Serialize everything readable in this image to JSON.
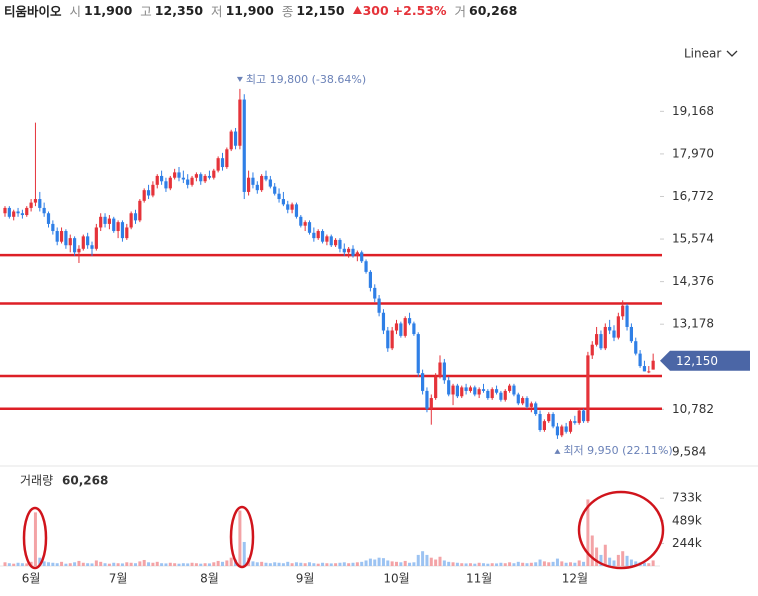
{
  "header": {
    "name": "티움바이오",
    "items": [
      {
        "label": "시",
        "value": "11,900"
      },
      {
        "label": "고",
        "value": "12,350"
      },
      {
        "label": "저",
        "value": "11,900"
      },
      {
        "label": "종",
        "value": "12,150"
      }
    ],
    "change": "300",
    "change_pct": "+2.53%",
    "volume_label": "거",
    "volume": "60,268"
  },
  "chart_data": {
    "type": "candlestick",
    "scale_mode": "Linear",
    "categories": [
      null,
      null,
      null,
      null,
      null,
      null,
      "6월",
      null,
      null,
      null,
      null,
      null,
      null,
      null,
      null,
      null,
      null,
      null,
      null,
      null,
      null,
      null,
      null,
      null,
      null,
      null,
      "7월",
      null,
      null,
      null,
      null,
      null,
      null,
      null,
      null,
      null,
      null,
      null,
      null,
      null,
      null,
      null,
      null,
      null,
      null,
      null,
      null,
      "8월",
      null,
      null,
      null,
      null,
      null,
      null,
      null,
      null,
      null,
      null,
      null,
      null,
      null,
      null,
      null,
      null,
      null,
      null,
      null,
      null,
      null,
      "9월",
      null,
      null,
      null,
      null,
      null,
      null,
      null,
      null,
      null,
      null,
      null,
      null,
      null,
      null,
      null,
      null,
      null,
      null,
      null,
      null,
      "10월",
      null,
      null,
      null,
      null,
      null,
      null,
      null,
      null,
      null,
      null,
      null,
      null,
      null,
      null,
      null,
      null,
      null,
      null,
      "11월",
      null,
      null,
      null,
      null,
      null,
      null,
      null,
      null,
      null,
      null,
      null,
      null,
      null,
      null,
      null,
      null,
      null,
      null,
      null,
      null,
      null,
      "12월",
      null,
      null,
      null,
      null,
      null,
      null,
      null,
      null,
      null,
      null,
      null,
      null,
      null,
      null,
      null,
      null,
      null,
      null
    ],
    "candles": [
      [
        16300,
        16500,
        16200,
        16450
      ],
      [
        16450,
        16500,
        16150,
        16200
      ],
      [
        16200,
        16400,
        16100,
        16350
      ],
      [
        16350,
        16450,
        16200,
        16300
      ],
      [
        16300,
        16400,
        16150,
        16250
      ],
      [
        16250,
        16500,
        16200,
        16450
      ],
      [
        16450,
        16700,
        16350,
        16600
      ],
      [
        16600,
        18850,
        16500,
        16700
      ],
      [
        16700,
        16900,
        16350,
        16450
      ],
      [
        16450,
        16600,
        16200,
        16300
      ],
      [
        16300,
        16350,
        15900,
        16000
      ],
      [
        16000,
        16100,
        15700,
        15800
      ],
      [
        15800,
        15900,
        15400,
        15500
      ],
      [
        15500,
        15900,
        15450,
        15800
      ],
      [
        15800,
        15850,
        15300,
        15400
      ],
      [
        15400,
        15700,
        15200,
        15600
      ],
      [
        15600,
        15650,
        15100,
        15200
      ],
      [
        15200,
        15400,
        14900,
        15300
      ],
      [
        15300,
        15700,
        15250,
        15650
      ],
      [
        15650,
        15750,
        15300,
        15400
      ],
      [
        15400,
        15500,
        15100,
        15300
      ],
      [
        15300,
        16000,
        15250,
        15900
      ],
      [
        15900,
        16300,
        15800,
        16200
      ],
      [
        16200,
        16300,
        15900,
        16000
      ],
      [
        16000,
        16250,
        15850,
        16150
      ],
      [
        16150,
        16200,
        15750,
        15800
      ],
      [
        15800,
        16100,
        15600,
        16050
      ],
      [
        16050,
        16100,
        15500,
        15600
      ],
      [
        15600,
        16000,
        15550,
        15900
      ],
      [
        15900,
        16350,
        15850,
        16300
      ],
      [
        16300,
        16400,
        16000,
        16100
      ],
      [
        16100,
        16700,
        16050,
        16650
      ],
      [
        16650,
        17000,
        16600,
        16950
      ],
      [
        16950,
        17100,
        16700,
        16800
      ],
      [
        16800,
        17200,
        16750,
        17100
      ],
      [
        17100,
        17400,
        17000,
        17350
      ],
      [
        17350,
        17500,
        17100,
        17200
      ],
      [
        17200,
        17300,
        16900,
        17000
      ],
      [
        17000,
        17350,
        16950,
        17300
      ],
      [
        17300,
        17550,
        17250,
        17450
      ],
      [
        17450,
        17600,
        17200,
        17300
      ],
      [
        17300,
        17500,
        17150,
        17250
      ],
      [
        17250,
        17400,
        17000,
        17100
      ],
      [
        17100,
        17350,
        17050,
        17300
      ],
      [
        17300,
        17450,
        17200,
        17400
      ],
      [
        17400,
        17450,
        17100,
        17200
      ],
      [
        17200,
        17400,
        17150,
        17350
      ],
      [
        17350,
        17500,
        17250,
        17300
      ],
      [
        17300,
        17550,
        17250,
        17500
      ],
      [
        17500,
        17900,
        17450,
        17850
      ],
      [
        17850,
        18000,
        17500,
        17600
      ],
      [
        17600,
        18150,
        17550,
        18100
      ],
      [
        18100,
        18650,
        18050,
        18600
      ],
      [
        18600,
        18700,
        18100,
        18200
      ],
      [
        18200,
        19800,
        18100,
        19500
      ],
      [
        19500,
        19650,
        16700,
        16900
      ],
      [
        16900,
        17500,
        16800,
        17300
      ],
      [
        17300,
        17450,
        17000,
        17100
      ],
      [
        17100,
        17200,
        16850,
        16950
      ],
      [
        16950,
        17400,
        16900,
        17350
      ],
      [
        17350,
        17500,
        17200,
        17250
      ],
      [
        17250,
        17350,
        17000,
        17050
      ],
      [
        17050,
        17150,
        16800,
        16850
      ],
      [
        16850,
        17000,
        16600,
        16700
      ],
      [
        16700,
        16900,
        16500,
        16550
      ],
      [
        16550,
        16650,
        16300,
        16400
      ],
      [
        16400,
        16600,
        16300,
        16550
      ],
      [
        16550,
        16600,
        16150,
        16200
      ],
      [
        16200,
        16250,
        15900,
        15950
      ],
      [
        15950,
        16100,
        15800,
        16050
      ],
      [
        16050,
        16100,
        15700,
        15750
      ],
      [
        15750,
        15900,
        15500,
        15600
      ],
      [
        15600,
        15850,
        15550,
        15800
      ],
      [
        15800,
        15850,
        15450,
        15500
      ],
      [
        15500,
        15700,
        15400,
        15650
      ],
      [
        15650,
        15700,
        15350,
        15400
      ],
      [
        15400,
        15600,
        15350,
        15550
      ],
      [
        15550,
        15600,
        15200,
        15300
      ],
      [
        15300,
        15450,
        15100,
        15200
      ],
      [
        15200,
        15350,
        15050,
        15300
      ],
      [
        15300,
        15400,
        15050,
        15100
      ],
      [
        15100,
        15250,
        14950,
        15200
      ],
      [
        15200,
        15250,
        14900,
        14950
      ],
      [
        14950,
        15000,
        14600,
        14650
      ],
      [
        14650,
        14700,
        14100,
        14200
      ],
      [
        14200,
        14300,
        13800,
        13900
      ],
      [
        13900,
        14000,
        13400,
        13500
      ],
      [
        13500,
        13600,
        12900,
        13000
      ],
      [
        13000,
        13100,
        12400,
        12500
      ],
      [
        12500,
        13100,
        12450,
        13000
      ],
      [
        13000,
        13300,
        12900,
        13200
      ],
      [
        13200,
        13250,
        12800,
        12850
      ],
      [
        12850,
        13400,
        12800,
        13350
      ],
      [
        13350,
        13500,
        13150,
        13200
      ],
      [
        13200,
        13250,
        12850,
        12900
      ],
      [
        12900,
        12950,
        11700,
        11800
      ],
      [
        11800,
        11900,
        11200,
        11300
      ],
      [
        11300,
        11400,
        10700,
        10800
      ],
      [
        10800,
        11200,
        10350,
        11100
      ],
      [
        11100,
        11800,
        11050,
        11700
      ],
      [
        11700,
        12300,
        11650,
        12100
      ],
      [
        12100,
        12200,
        11500,
        11600
      ],
      [
        11600,
        11700,
        11150,
        11200
      ],
      [
        11200,
        11500,
        10900,
        11450
      ],
      [
        11450,
        11500,
        11100,
        11150
      ],
      [
        11150,
        11450,
        11100,
        11400
      ],
      [
        11400,
        11500,
        11200,
        11300
      ],
      [
        11300,
        11450,
        11250,
        11400
      ],
      [
        11400,
        11450,
        11150,
        11200
      ],
      [
        11200,
        11400,
        11100,
        11350
      ],
      [
        11350,
        11500,
        11250,
        11300
      ],
      [
        11300,
        11350,
        11050,
        11100
      ],
      [
        11100,
        11400,
        11050,
        11350
      ],
      [
        11350,
        11450,
        11200,
        11250
      ],
      [
        11250,
        11300,
        11000,
        11050
      ],
      [
        11050,
        11350,
        11000,
        11300
      ],
      [
        11300,
        11500,
        11250,
        11450
      ],
      [
        11450,
        11500,
        11150,
        11200
      ],
      [
        11200,
        11250,
        10900,
        10950
      ],
      [
        10950,
        11150,
        10900,
        11100
      ],
      [
        11100,
        11150,
        10800,
        10850
      ],
      [
        10850,
        11000,
        10700,
        10950
      ],
      [
        10950,
        11000,
        10600,
        10650
      ],
      [
        10650,
        10750,
        10150,
        10200
      ],
      [
        10200,
        10500,
        10150,
        10450
      ],
      [
        10450,
        10700,
        10400,
        10650
      ],
      [
        10650,
        10700,
        10250,
        10300
      ],
      [
        10300,
        10400,
        9950,
        10050
      ],
      [
        10050,
        10350,
        10000,
        10300
      ],
      [
        10300,
        10400,
        10100,
        10150
      ],
      [
        10150,
        10500,
        10100,
        10450
      ],
      [
        10450,
        10600,
        10350,
        10400
      ],
      [
        10400,
        10800,
        10350,
        10750
      ],
      [
        10750,
        10800,
        10400,
        10450
      ],
      [
        10450,
        12400,
        10400,
        12300
      ],
      [
        12300,
        12700,
        12200,
        12600
      ],
      [
        12600,
        13100,
        12550,
        12900
      ],
      [
        12900,
        13000,
        12450,
        12500
      ],
      [
        12500,
        13200,
        12450,
        13100
      ],
      [
        13100,
        13300,
        12900,
        13000
      ],
      [
        13000,
        13150,
        12700,
        12800
      ],
      [
        12800,
        13500,
        12750,
        13400
      ],
      [
        13400,
        13850,
        13300,
        13700
      ],
      [
        13700,
        13750,
        13000,
        13100
      ],
      [
        13100,
        13200,
        12650,
        12700
      ],
      [
        12700,
        12800,
        12300,
        12350
      ],
      [
        12350,
        12450,
        11950,
        12000
      ],
      [
        12000,
        12150,
        11850,
        11850
      ],
      [
        11850,
        12000,
        11800,
        11850
      ],
      [
        11900,
        12350,
        11900,
        12150
      ]
    ],
    "up_color": "#e5333a",
    "down_color": "#2f7fe6",
    "ylim": [
      9300,
      20050
    ],
    "yticks": [
      {
        "value": 9584,
        "label": "9,584"
      },
      {
        "value": 10782,
        "label": "10,782"
      },
      {
        "value": 13178,
        "label": "13,178"
      },
      {
        "value": 14376,
        "label": "14,376"
      },
      {
        "value": 15574,
        "label": "15,574"
      },
      {
        "value": 16772,
        "label": "16,772"
      },
      {
        "value": 17970,
        "label": "17,970"
      },
      {
        "value": 19168,
        "label": "19,168"
      }
    ],
    "hlines": [
      15120,
      13760,
      11720,
      10800
    ],
    "hline_color": "#dd1f26",
    "current": {
      "value": 12150,
      "label": "12,150",
      "color": "#4b66a6"
    },
    "high_annotation": {
      "value": 19800,
      "label": "최고 19,800 (-38.64%)"
    },
    "low_annotation": {
      "value": 9950,
      "label": "최저 9,950 (22.11%)"
    },
    "annotation_color": "#6b82b8",
    "volume": {
      "title": "거래량",
      "last": "60,268",
      "up_color": "#f3a3a6",
      "down_color": "#9cc3f2",
      "values": [
        40000,
        30000,
        25000,
        35000,
        30000,
        28000,
        45000,
        580000,
        90000,
        50000,
        40000,
        35000,
        30000,
        45000,
        25000,
        30000,
        40000,
        55000,
        35000,
        30000,
        28000,
        60000,
        45000,
        30000,
        25000,
        35000,
        30000,
        28000,
        40000,
        35000,
        30000,
        50000,
        65000,
        40000,
        35000,
        45000,
        30000,
        28000,
        35000,
        30000,
        25000,
        30000,
        28000,
        35000,
        30000,
        25000,
        30000,
        28000,
        40000,
        55000,
        45000,
        60000,
        90000,
        70000,
        600000,
        260000,
        90000,
        50000,
        40000,
        45000,
        35000,
        30000,
        40000,
        35000,
        30000,
        45000,
        30000,
        40000,
        35000,
        30000,
        40000,
        30000,
        25000,
        35000,
        30000,
        28000,
        30000,
        35000,
        40000,
        30000,
        35000,
        40000,
        45000,
        60000,
        80000,
        70000,
        90000,
        85000,
        60000,
        50000,
        45000,
        40000,
        55000,
        35000,
        40000,
        120000,
        160000,
        120000,
        90000,
        70000,
        100000,
        60000,
        45000,
        40000,
        35000,
        30000,
        28000,
        30000,
        25000,
        35000,
        30000,
        25000,
        30000,
        28000,
        35000,
        30000,
        40000,
        30000,
        45000,
        35000,
        30000,
        35000,
        40000,
        70000,
        50000,
        40000,
        45000,
        80000,
        50000,
        35000,
        40000,
        35000,
        60000,
        45000,
        720000,
        330000,
        200000,
        120000,
        230000,
        90000,
        60000,
        120000,
        160000,
        110000,
        70000,
        50000,
        40000,
        35000,
        30000,
        60268
      ],
      "ylim": [
        0,
        1060000
      ],
      "yticks": [
        {
          "value": 244400,
          "label": "244k"
        },
        {
          "value": 488800,
          "label": "489k"
        },
        {
          "value": 733200,
          "label": "733k"
        }
      ]
    }
  }
}
